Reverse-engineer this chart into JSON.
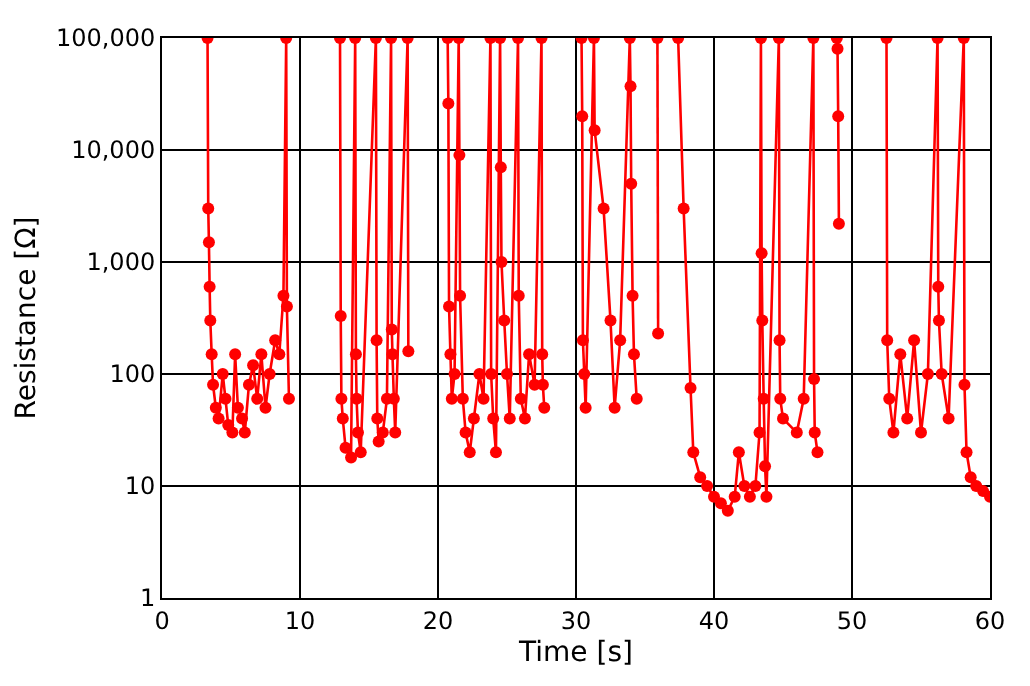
{
  "chart_data": {
    "type": "line",
    "xlabel": "Time [s]",
    "ylabel": "Resistance [Ω]",
    "log": "y",
    "grid": true,
    "marker": "circle",
    "line_style": "solid",
    "xlim": [
      0,
      60
    ],
    "xticks": [
      0,
      10,
      20,
      30,
      40,
      50,
      60
    ],
    "ylim": [
      1,
      100000
    ],
    "yticks": [
      1,
      10,
      100,
      {
        "value": 1000,
        "label": "1,000"
      },
      {
        "value": 10000,
        "label": "10,000"
      },
      {
        "value": 100000,
        "label": "100,000"
      }
    ],
    "x": [
      3.3,
      3.35,
      3.4,
      3.45,
      3.5,
      3.6,
      3.7,
      3.9,
      4.1,
      4.4,
      4.6,
      4.8,
      5.1,
      5.3,
      5.5,
      5.8,
      6.0,
      6.3,
      6.6,
      6.9,
      7.2,
      7.5,
      7.8,
      8.2,
      8.5,
      8.8,
      9.0,
      9.05,
      9.2,
      11.0,
      12.9,
      12.95,
      13.0,
      13.1,
      13.3,
      13.7,
      14.0,
      14.05,
      14.1,
      14.2,
      14.4,
      15.5,
      15.55,
      15.6,
      15.7,
      16.0,
      16.3,
      16.6,
      16.65,
      16.7,
      16.8,
      16.9,
      17.8,
      17.85,
      19.0,
      20.7,
      20.75,
      20.8,
      20.9,
      21.0,
      21.2,
      21.5,
      21.55,
      21.6,
      21.8,
      22.0,
      22.3,
      22.6,
      23.0,
      23.3,
      23.8,
      23.85,
      24.0,
      24.2,
      24.5,
      24.55,
      24.6,
      24.8,
      25.0,
      25.2,
      25.8,
      25.85,
      26.0,
      26.3,
      26.6,
      27.0,
      27.5,
      27.55,
      27.6,
      27.7,
      29.0,
      30.4,
      30.45,
      30.5,
      30.6,
      30.7,
      31.3,
      31.35,
      32.0,
      32.5,
      32.8,
      33.2,
      33.9,
      33.95,
      34.0,
      34.1,
      34.2,
      34.4,
      35.0,
      35.9,
      35.95,
      36.5,
      37.4,
      37.8,
      38.3,
      38.5,
      39.0,
      39.5,
      40.0,
      40.5,
      41.0,
      41.5,
      41.8,
      42.2,
      42.6,
      43.0,
      43.3,
      43.4,
      43.45,
      43.5,
      43.6,
      43.7,
      43.8,
      44.7,
      44.75,
      44.8,
      45.0,
      46.0,
      46.5,
      47.2,
      47.25,
      47.3,
      47.5,
      48.0,
      48.9,
      48.95,
      49.0,
      49.05,
      51.0,
      52.5,
      52.55,
      52.7,
      53.0,
      53.5,
      54.0,
      54.5,
      55.0,
      55.5,
      56.2,
      56.25,
      56.3,
      56.5,
      57.0,
      58.1,
      58.15,
      58.3,
      58.6,
      59.0,
      59.5,
      60.0
    ],
    "series": [
      {
        "color": "#ff0000",
        "values": [
          100000,
          3000,
          1500,
          600,
          300,
          150,
          80,
          50,
          40,
          100,
          60,
          35,
          30,
          150,
          50,
          40,
          30,
          80,
          120,
          60,
          150,
          50,
          100,
          200,
          150,
          500,
          100000,
          400,
          60,
          null,
          100000,
          330,
          60,
          40,
          22,
          18,
          100000,
          150,
          60,
          30,
          20,
          100000,
          200,
          40,
          25,
          30,
          60,
          100000,
          250,
          150,
          60,
          30,
          100000,
          160,
          null,
          100000,
          26000,
          400,
          150,
          60,
          100,
          100000,
          9000,
          500,
          60,
          30,
          20,
          40,
          100,
          60,
          100000,
          100,
          40,
          20,
          100000,
          7000,
          1000,
          300,
          100,
          40,
          100000,
          500,
          60,
          40,
          150,
          80,
          100000,
          150,
          80,
          50,
          null,
          100000,
          20000,
          200,
          100,
          50,
          100000,
          15000,
          3000,
          300,
          50,
          200,
          100000,
          37000,
          5000,
          500,
          150,
          60,
          null,
          100000,
          230,
          null,
          100000,
          3000,
          75,
          20,
          12,
          10,
          8,
          7,
          6,
          8,
          20,
          10,
          8,
          10,
          30,
          100000,
          1200,
          300,
          60,
          15,
          8,
          100000,
          200,
          60,
          40,
          30,
          60,
          100000,
          90,
          30,
          20,
          null,
          100000,
          80000,
          20000,
          2200,
          null,
          100000,
          200,
          60,
          30,
          150,
          40,
          200,
          30,
          100,
          100000,
          600,
          300,
          100,
          40,
          100000,
          80,
          20,
          12,
          10,
          9,
          8
        ]
      }
    ]
  }
}
